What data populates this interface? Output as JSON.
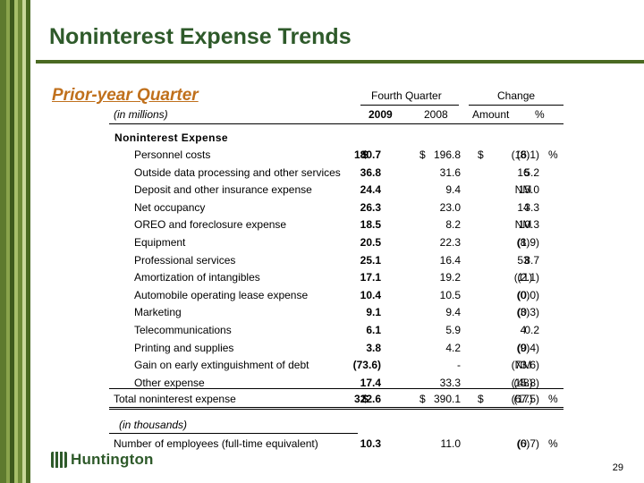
{
  "title": "Noninterest Expense Trends",
  "subtitle": "Prior-year Quarter",
  "headers": {
    "fourth_quarter": "Fourth Quarter",
    "change": "Change",
    "units": "(in millions)",
    "y2009": "2009",
    "y2008": "2008",
    "amount": "Amount",
    "percent": "%"
  },
  "section_label": "Noninterest Expense",
  "rows": [
    {
      "label": "Personnel costs",
      "v2009": "180.7",
      "v2008": "196.8",
      "amount": "(16.1)",
      "pct": "(8)"
    },
    {
      "label": "Outside data processing and other services",
      "v2009": "36.8",
      "v2008": "31.6",
      "amount": "5.2",
      "pct": "16"
    },
    {
      "label": "Deposit and other insurance expense",
      "v2009": "24.4",
      "v2008": "9.4",
      "amount": "15.0",
      "pct": "NM"
    },
    {
      "label": "Net occupancy",
      "v2009": "26.3",
      "v2008": "23.0",
      "amount": "3.3",
      "pct": "14"
    },
    {
      "label": "OREO and foreclosure expense",
      "v2009": "18.5",
      "v2008": "8.2",
      "amount": "10.3",
      "pct": "NM"
    },
    {
      "label": "Equipment",
      "v2009": "20.5",
      "v2008": "22.3",
      "amount": "(1.9)",
      "pct": "(8)"
    },
    {
      "label": "Professional services",
      "v2009": "25.1",
      "v2008": "16.4",
      "amount": "8.7",
      "pct": "53"
    },
    {
      "label": "Amortization of intangibles",
      "v2009": "17.1",
      "v2008": "19.2",
      "amount": "(2.1)",
      "pct": "(11)"
    },
    {
      "label": "Automobile operating lease expense",
      "v2009": "10.4",
      "v2008": "10.5",
      "amount": "(0.0)",
      "pct": "(0)"
    },
    {
      "label": "Marketing",
      "v2009": "9.1",
      "v2008": "9.4",
      "amount": "(0.3)",
      "pct": "(3)"
    },
    {
      "label": "Telecommunications",
      "v2009": "6.1",
      "v2008": "5.9",
      "amount": "0.2",
      "pct": "4"
    },
    {
      "label": "Printing and supplies",
      "v2009": "3.8",
      "v2008": "4.2",
      "amount": "(0.4)",
      "pct": "(9)"
    },
    {
      "label": "Gain on early extinguishment of debt",
      "v2009": "(73.6)",
      "v2008": "-",
      "amount": "(73.6)",
      "pct": "NM"
    },
    {
      "label": "Other expense",
      "v2009": "17.4",
      "v2008": "33.3",
      "amount": "(15.8)",
      "pct": "(48)"
    }
  ],
  "total": {
    "label": "Total noninterest expense",
    "v2009": "322.6",
    "v2008": "390.1",
    "amount": "(67.5)",
    "pct": "(17)"
  },
  "thousands_label": "(in thousands)",
  "employees": {
    "label": "Number of employees (full-time equivalent)",
    "v2009": "10.3",
    "v2008": "11.0",
    "amount": "(0.7)",
    "pct": "(6)"
  },
  "currency_symbol": "$",
  "percent_symbol": "%",
  "logo_text": "Huntington",
  "page_number": "29"
}
